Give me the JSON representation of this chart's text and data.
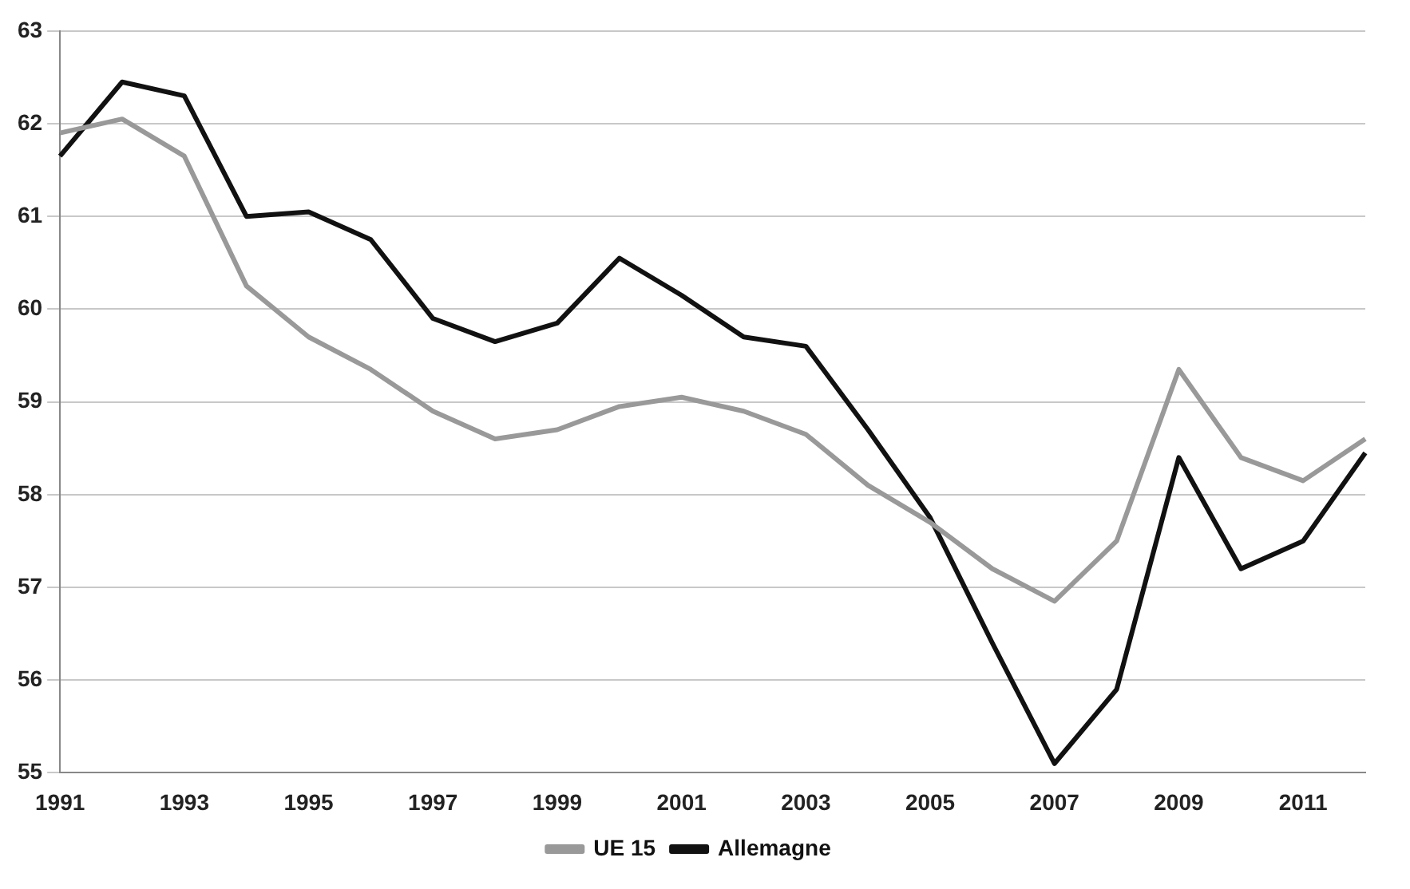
{
  "chart_data": {
    "type": "line",
    "categories": [
      "1991",
      null,
      "1993",
      null,
      "1995",
      null,
      "1997",
      null,
      "1999",
      null,
      "2001",
      null,
      "2003",
      null,
      "2005",
      null,
      "2007",
      null,
      "2009",
      null,
      "2011",
      null
    ],
    "series": [
      {
        "name": "UE 15",
        "color": "#999999",
        "values": [
          61.9,
          62.05,
          61.65,
          60.25,
          59.7,
          59.35,
          58.9,
          58.6,
          58.7,
          58.95,
          59.05,
          58.9,
          58.65,
          58.1,
          57.7,
          57.2,
          56.85,
          57.5,
          59.35,
          58.4,
          58.15,
          58.6
        ]
      },
      {
        "name": "Allemagne",
        "color": "#111111",
        "values": [
          61.65,
          62.45,
          62.3,
          61.0,
          61.05,
          60.75,
          59.9,
          59.65,
          59.85,
          60.55,
          60.15,
          59.7,
          59.6,
          58.7,
          57.75,
          56.4,
          55.1,
          55.9,
          58.4,
          57.2,
          57.5,
          58.45
        ]
      }
    ],
    "ylim": [
      55,
      63
    ],
    "yticks": [
      55,
      56,
      57,
      58,
      59,
      60,
      61,
      62,
      63
    ],
    "grid": "y",
    "legend": "bottom",
    "marker": "none",
    "line_style": "solid"
  }
}
